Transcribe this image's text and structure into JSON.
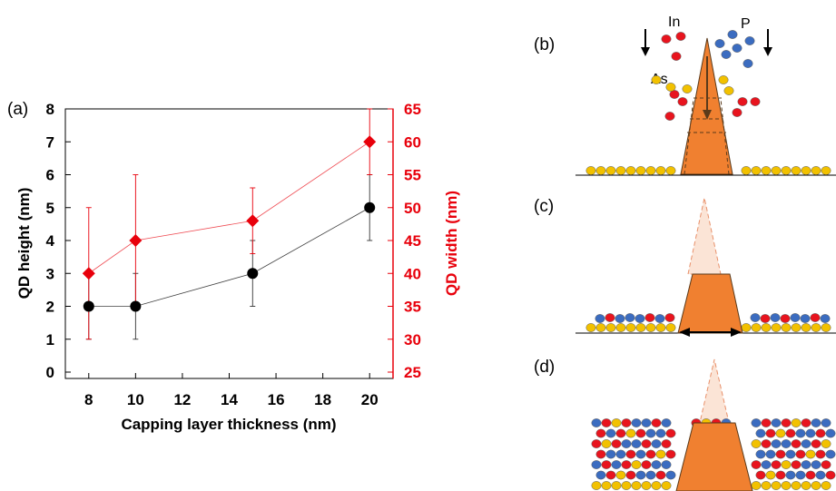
{
  "panels": {
    "a": "(a)",
    "b": "(b)",
    "c": "(c)",
    "d": "(d)"
  },
  "atoms": {
    "in": "In",
    "p": "P",
    "as": "As"
  },
  "colors": {
    "height": "#000000",
    "width": "#e8000b",
    "qd": "#f08030",
    "in_atom": "#e8141e",
    "p_atom": "#3b6cc0",
    "as_atom": "#f2c100"
  },
  "chart_data": {
    "type": "line",
    "xlabel": "Capping layer thickness (nm)",
    "ylabel_left": "QD height (nm)",
    "ylabel_right": "QD width (nm)",
    "xlim": [
      7,
      21
    ],
    "ylim_left": [
      0,
      8
    ],
    "ylim_right": [
      25,
      65
    ],
    "x_ticks": [
      "8",
      "10",
      "12",
      "14",
      "16",
      "18",
      "20"
    ],
    "y_ticks_left": [
      "0",
      "1",
      "2",
      "3",
      "4",
      "5",
      "6",
      "7",
      "8"
    ],
    "y_ticks_right": [
      "25",
      "30",
      "35",
      "40",
      "45",
      "50",
      "55",
      "60",
      "65"
    ],
    "x": [
      8,
      10,
      15,
      20
    ],
    "series": [
      {
        "axis": "left",
        "values": [
          2,
          2,
          3,
          5
        ],
        "errors": [
          1,
          1,
          1,
          1
        ],
        "marker": "circle",
        "color": "#000000"
      },
      {
        "axis": "right",
        "values": [
          40,
          45,
          48,
          60
        ],
        "errors": [
          10,
          10,
          5,
          5
        ],
        "marker": "diamond",
        "color": "#e8000b"
      }
    ]
  }
}
